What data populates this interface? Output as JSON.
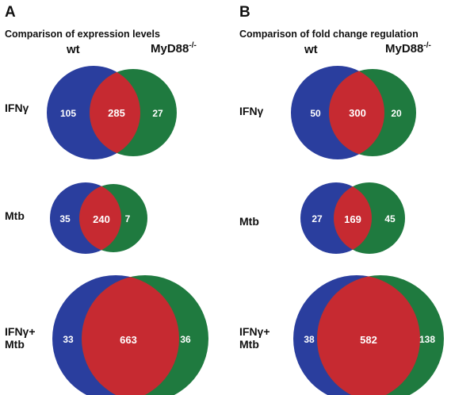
{
  "colors": {
    "wt": "#2a3e9e",
    "myd88": "#1f7a3f",
    "overlap": "#c62a31",
    "number_text": "#ffffff"
  },
  "panel_a": {
    "letter": "A",
    "title": "Comparison of expression levels",
    "col_wt": "wt",
    "col_myd88": "MyD88",
    "col_myd88_sup": "-/-",
    "rows": [
      {
        "label": "IFNγ",
        "wt_only": "105",
        "overlap": "285",
        "myd88_only": "27"
      },
      {
        "label": "Mtb",
        "wt_only": "35",
        "overlap": "240",
        "myd88_only": "7"
      },
      {
        "label_line1": "IFNγ+",
        "label_line2": "Mtb",
        "wt_only": "33",
        "overlap": "663",
        "myd88_only": "36"
      }
    ]
  },
  "panel_b": {
    "letter": "B",
    "title": "Comparison of fold change regulation",
    "col_wt": "wt",
    "col_myd88": "MyD88",
    "col_myd88_sup": "-/-",
    "rows": [
      {
        "label": "IFNγ",
        "wt_only": "50",
        "overlap": "300",
        "myd88_only": "20"
      },
      {
        "label": "Mtb",
        "wt_only": "27",
        "overlap": "169",
        "myd88_only": "45"
      },
      {
        "label_line1": "IFNγ+",
        "label_line2": "Mtb",
        "wt_only": "38",
        "overlap": "582",
        "myd88_only": "138"
      }
    ]
  }
}
